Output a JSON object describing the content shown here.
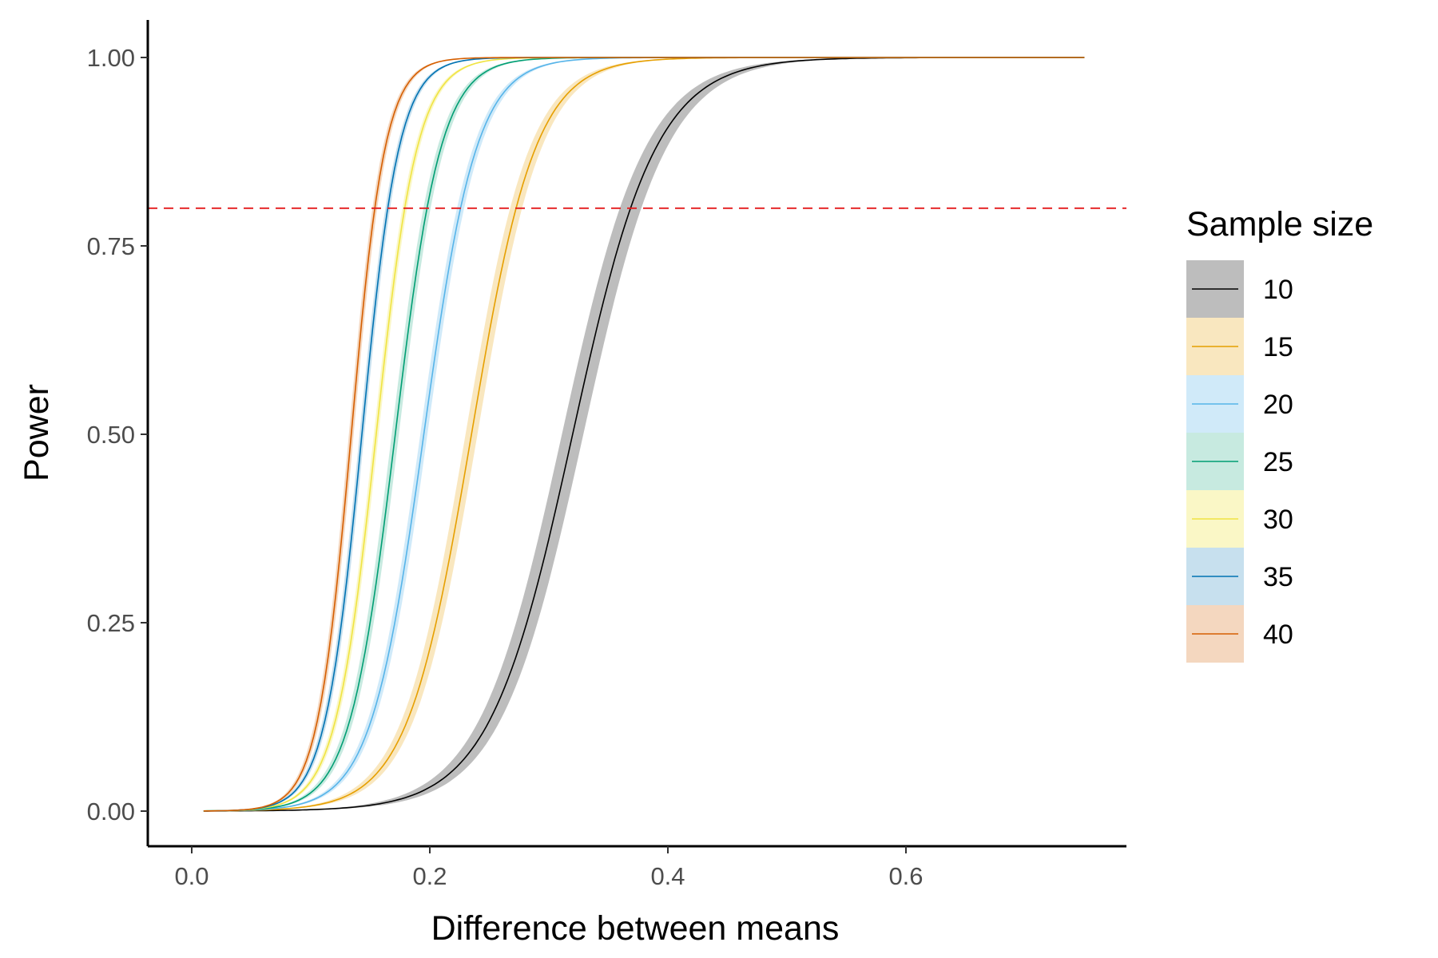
{
  "chart_data": {
    "type": "line",
    "title": "",
    "xlabel": "Difference between means",
    "ylabel": "Power",
    "xlim": [
      -0.04,
      0.78
    ],
    "ylim": [
      -0.05,
      1.05
    ],
    "x_ticks": [
      0.0,
      0.2,
      0.4,
      0.6
    ],
    "x_tick_labels": [
      "0.0",
      "0.2",
      "0.4",
      "0.6"
    ],
    "y_ticks": [
      0.0,
      0.25,
      0.5,
      0.75,
      1.0
    ],
    "y_tick_labels": [
      "0.00",
      "0.25",
      "0.50",
      "0.75",
      "1.00"
    ],
    "grid": false,
    "x_range": [
      0.01,
      0.75
    ],
    "reference_line": {
      "y": 0.8,
      "style": "dashed",
      "color": "#e41a1c"
    },
    "legend": {
      "title": "Sample size",
      "position": "right"
    },
    "curve_model": "logistic",
    "series": [
      {
        "name": "10",
        "color": "#000000",
        "band_color": "#bdbdbd",
        "band_opacity": 1.0,
        "midpoint": 0.32,
        "slope": 28.5,
        "band_half_width": 0.009,
        "points": [
          [
            0.0,
            0.0
          ],
          [
            0.2,
            0.03
          ],
          [
            0.25,
            0.12
          ],
          [
            0.3,
            0.36
          ],
          [
            0.32,
            0.5
          ],
          [
            0.35,
            0.69
          ],
          [
            0.39,
            0.8
          ],
          [
            0.45,
            0.95
          ],
          [
            0.55,
            1.0
          ],
          [
            0.75,
            1.0
          ]
        ]
      },
      {
        "name": "15",
        "color": "#e69f00",
        "band_color": "#e69f00",
        "band_opacity": 0.25,
        "midpoint": 0.235,
        "slope": 37,
        "band_half_width": 0.005,
        "points": [
          [
            0.0,
            0.0
          ],
          [
            0.15,
            0.04
          ],
          [
            0.2,
            0.22
          ],
          [
            0.235,
            0.5
          ],
          [
            0.28,
            0.8
          ],
          [
            0.35,
            0.98
          ],
          [
            0.45,
            1.0
          ],
          [
            0.75,
            1.0
          ]
        ]
      },
      {
        "name": "20",
        "color": "#56b4e9",
        "band_color": "#56b4e9",
        "band_opacity": 0.28,
        "midpoint": 0.195,
        "slope": 45,
        "band_half_width": 0.003,
        "points": [
          [
            0.0,
            0.0
          ],
          [
            0.12,
            0.04
          ],
          [
            0.16,
            0.2
          ],
          [
            0.195,
            0.5
          ],
          [
            0.235,
            0.8
          ],
          [
            0.3,
            0.99
          ],
          [
            0.75,
            1.0
          ]
        ]
      },
      {
        "name": "25",
        "color": "#009e73",
        "band_color": "#009e73",
        "band_opacity": 0.22,
        "midpoint": 0.171,
        "slope": 52,
        "band_half_width": 0.003,
        "points": [
          [
            0.0,
            0.0
          ],
          [
            0.1,
            0.03
          ],
          [
            0.14,
            0.2
          ],
          [
            0.171,
            0.5
          ],
          [
            0.2,
            0.8
          ],
          [
            0.27,
            0.99
          ],
          [
            0.75,
            1.0
          ]
        ]
      },
      {
        "name": "30",
        "color": "#f0e442",
        "band_color": "#f0e442",
        "band_opacity": 0.3,
        "midpoint": 0.155,
        "slope": 58,
        "band_half_width": 0.002,
        "points": [
          [
            0.0,
            0.0
          ],
          [
            0.1,
            0.04
          ],
          [
            0.13,
            0.2
          ],
          [
            0.155,
            0.5
          ],
          [
            0.18,
            0.8
          ],
          [
            0.25,
            0.99
          ],
          [
            0.75,
            1.0
          ]
        ]
      },
      {
        "name": "35",
        "color": "#0072b2",
        "band_color": "#0072b2",
        "band_opacity": 0.22,
        "midpoint": 0.143,
        "slope": 64,
        "band_half_width": 0.002,
        "points": [
          [
            0.0,
            0.0
          ],
          [
            0.09,
            0.04
          ],
          [
            0.12,
            0.2
          ],
          [
            0.143,
            0.5
          ],
          [
            0.165,
            0.8
          ],
          [
            0.23,
            0.99
          ],
          [
            0.75,
            1.0
          ]
        ]
      },
      {
        "name": "40",
        "color": "#d55e00",
        "band_color": "#d55e00",
        "band_opacity": 0.25,
        "midpoint": 0.134,
        "slope": 70,
        "band_half_width": 0.002,
        "points": [
          [
            0.0,
            0.0
          ],
          [
            0.09,
            0.06
          ],
          [
            0.115,
            0.23
          ],
          [
            0.134,
            0.5
          ],
          [
            0.156,
            0.8
          ],
          [
            0.22,
            0.99
          ],
          [
            0.75,
            1.0
          ]
        ]
      }
    ]
  }
}
